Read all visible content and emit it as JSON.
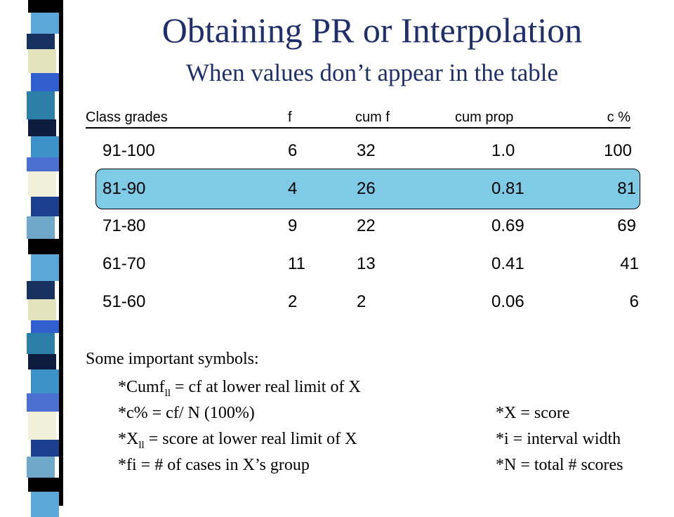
{
  "title": "Obtaining PR or Interpolation",
  "subtitle": "When values don’t appear in the table",
  "table": {
    "headers": [
      "Class grades",
      "f",
      "cum f",
      "cum prop",
      "c %"
    ],
    "rows": [
      [
        "91-100",
        "6",
        "32",
        "1.0",
        "100"
      ],
      [
        "81-90",
        "4",
        "26",
        "0.81",
        "81"
      ],
      [
        "71-80",
        "9",
        "22",
        "0.69",
        "69"
      ],
      [
        "61-70",
        "11",
        "13",
        "0.41",
        "41"
      ],
      [
        "51-60",
        "2",
        "2",
        "0.06",
        "6"
      ]
    ],
    "highlighted_row_index": 1,
    "highlight_color": "#7fcbe6"
  },
  "symbols": {
    "heading": "Some important symbols:",
    "cumf_prefix": "*Cumf",
    "cumf_sub": "ll",
    "cumf_rest": " = cf at lower real limit of X",
    "cpct": "*c% = cf/ N (100%)",
    "x_prefix": "*X",
    "x_sub": "ll",
    "x_rest": " = score at lower real limit of X",
    "fi": "*fi = # of cases in X’s group",
    "x_score": "*X = score",
    "i_width": "*i = interval width",
    "n_total": "*N = total # scores"
  },
  "colors": {
    "title": "#1f2f6b"
  }
}
